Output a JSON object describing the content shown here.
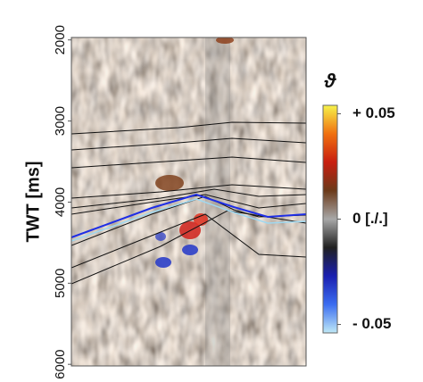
{
  "chart_data": {
    "type": "heatmap",
    "y_label": "TWT [ms]",
    "ylim": [
      1970,
      6020
    ],
    "yticks": [
      2000,
      3000,
      4000,
      5000,
      6000
    ],
    "colorbar": {
      "label": "ϑ",
      "lim": [
        -0.054,
        0.054
      ],
      "ticks": [
        {
          "value": 0.05,
          "label": "+ 0.05"
        },
        {
          "value": 0,
          "label": "0 [./.]"
        },
        {
          "value": -0.05,
          "label": "- 0.05"
        }
      ],
      "colors": [
        "#bfe9f7",
        "#3b6df0",
        "#1a1fb0",
        "#202020",
        "#a8a8a8",
        "#6b3a1a",
        "#c81e10",
        "#f07010",
        "#f6f34a"
      ]
    }
  }
}
